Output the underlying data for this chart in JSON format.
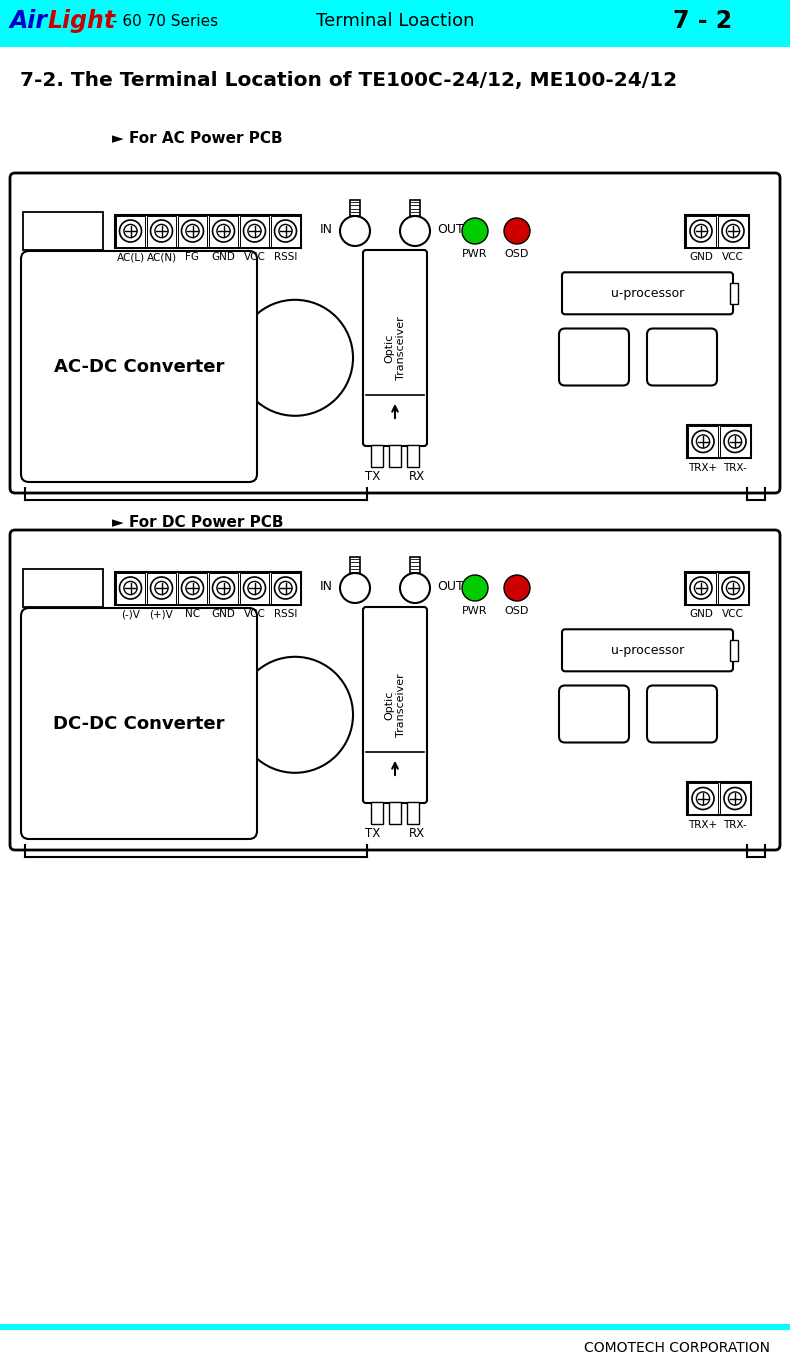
{
  "title_text": "7-2. The Terminal Location of TE100C-24/12, ME100-24/12",
  "header_series": "- 60 70 Series",
  "header_center": "Terminal Loaction",
  "header_right": "7 - 2",
  "header_bg": "#00FFFF",
  "airlight_air": "#0000CC",
  "airlight_light": "#CC0000",
  "footer_text": "COMOTECH CORPORATION",
  "ac_label": "► For AC Power PCB",
  "dc_label": "► For DC Power PCB",
  "ac_converter": "AC-DC Converter",
  "dc_converter": "DC-DC Converter",
  "ac_bottom_labels": [
    "AC(L)",
    "AC(N)",
    "FG",
    "GND",
    "VCC",
    "RSSI"
  ],
  "dc_bottom_labels": [
    "(-)V",
    "(+)V",
    "NC",
    "GND",
    "VCC",
    "RSSI"
  ],
  "pwr_color": "#00CC00",
  "osd_color": "#CC0000",
  "bg_color": "#FFFFFF"
}
